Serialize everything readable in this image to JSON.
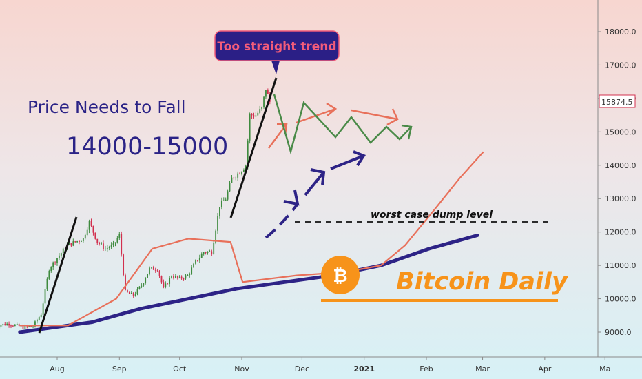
{
  "chart_data": {
    "type": "candlestick",
    "title": "",
    "xlabel": "",
    "ylabel": "",
    "ylim": [
      8500,
      19000
    ],
    "y_ticks": [
      "9000.0",
      "10000.0",
      "11000.0",
      "12000.0",
      "13000.0",
      "14000.0",
      "15000.0",
      "16000.0",
      "17000.0",
      "18000.0"
    ],
    "x_ticks": [
      {
        "label": "Aug",
        "date": "2020-08-01"
      },
      {
        "label": "Sep",
        "date": "2020-09-01"
      },
      {
        "label": "Oct",
        "date": "2020-10-01"
      },
      {
        "label": "Nov",
        "date": "2020-11-01"
      },
      {
        "label": "Dec",
        "date": "2020-12-01"
      },
      {
        "label": "2021",
        "date": "2021-01-01",
        "bold": true
      },
      {
        "label": "Feb",
        "date": "2021-02-01"
      },
      {
        "label": "Mar",
        "date": "2021-03-01"
      },
      {
        "label": "Apr",
        "date": "2021-04-01"
      },
      {
        "label": "Ma",
        "date": "2021-05-01"
      }
    ],
    "current_price": "15874.5",
    "price_close_series": [
      [
        "2020-07-01",
        9200
      ],
      [
        "2020-07-08",
        9250
      ],
      [
        "2020-07-15",
        9150
      ],
      [
        "2020-07-20",
        9180
      ],
      [
        "2020-07-24",
        9550
      ],
      [
        "2020-07-28",
        10900
      ],
      [
        "2020-08-02",
        11300
      ],
      [
        "2020-08-06",
        11600
      ],
      [
        "2020-08-10",
        11700
      ],
      [
        "2020-08-14",
        11800
      ],
      [
        "2020-08-17",
        12300
      ],
      [
        "2020-08-21",
        11700
      ],
      [
        "2020-08-25",
        11500
      ],
      [
        "2020-08-29",
        11600
      ],
      [
        "2020-09-01",
        11900
      ],
      [
        "2020-09-04",
        10200
      ],
      [
        "2020-09-08",
        10100
      ],
      [
        "2020-09-12",
        10400
      ],
      [
        "2020-09-16",
        10900
      ],
      [
        "2020-09-20",
        10900
      ],
      [
        "2020-09-23",
        10300
      ],
      [
        "2020-09-27",
        10700
      ],
      [
        "2020-10-01",
        10600
      ],
      [
        "2020-10-05",
        10700
      ],
      [
        "2020-10-09",
        11100
      ],
      [
        "2020-10-13",
        11400
      ],
      [
        "2020-10-17",
        11400
      ],
      [
        "2020-10-21",
        12800
      ],
      [
        "2020-10-24",
        13000
      ],
      [
        "2020-10-27",
        13600
      ],
      [
        "2020-10-31",
        13800
      ],
      [
        "2020-11-03",
        14000
      ],
      [
        "2020-11-05",
        15500
      ],
      [
        "2020-11-08",
        15500
      ],
      [
        "2020-11-11",
        15700
      ],
      [
        "2020-11-13",
        16300
      ],
      [
        "2020-11-15",
        15900
      ]
    ],
    "series": [
      {
        "values": [
          [
            0,
            9000
          ],
          [
            60,
            9300
          ],
          [
            100,
            9700
          ],
          [
            140,
            10000
          ],
          [
            180,
            10300
          ],
          [
            220,
            10500
          ],
          [
            260,
            10700
          ],
          [
            300,
            11000
          ],
          [
            340,
            11500
          ],
          [
            380,
            11900
          ]
        ]
      },
      {
        "values": [
          [
            0,
            9200
          ],
          [
            40,
            9200
          ],
          [
            80,
            10000
          ],
          [
            110,
            11500
          ],
          [
            140,
            11800
          ],
          [
            175,
            11700
          ],
          [
            185,
            10500
          ],
          [
            230,
            10700
          ],
          [
            270,
            10800
          ],
          [
            300,
            11000
          ],
          [
            320,
            11600
          ],
          [
            345,
            12700
          ],
          [
            365,
            13600
          ],
          [
            385,
            14400
          ]
        ]
      }
    ]
  },
  "annotations": {
    "callout": "Too straight trend",
    "price_line1": "Price Needs to Fall",
    "price_line2": "14000-15000",
    "worst_case": "worst case dump level",
    "brand": "Bitcoin Daily",
    "btc_symbol": "₿"
  },
  "colors": {
    "up": "#3e8a3e",
    "down": "#d2304f",
    "ma_fast": "#e8705a",
    "ma_slow": "#2d2386",
    "navy_text": "#2b2386",
    "orange": "#f7931a",
    "callout_bg": "#2b1f86",
    "callout_text": "#f25c7a",
    "projection_green": "#4a8a48"
  }
}
